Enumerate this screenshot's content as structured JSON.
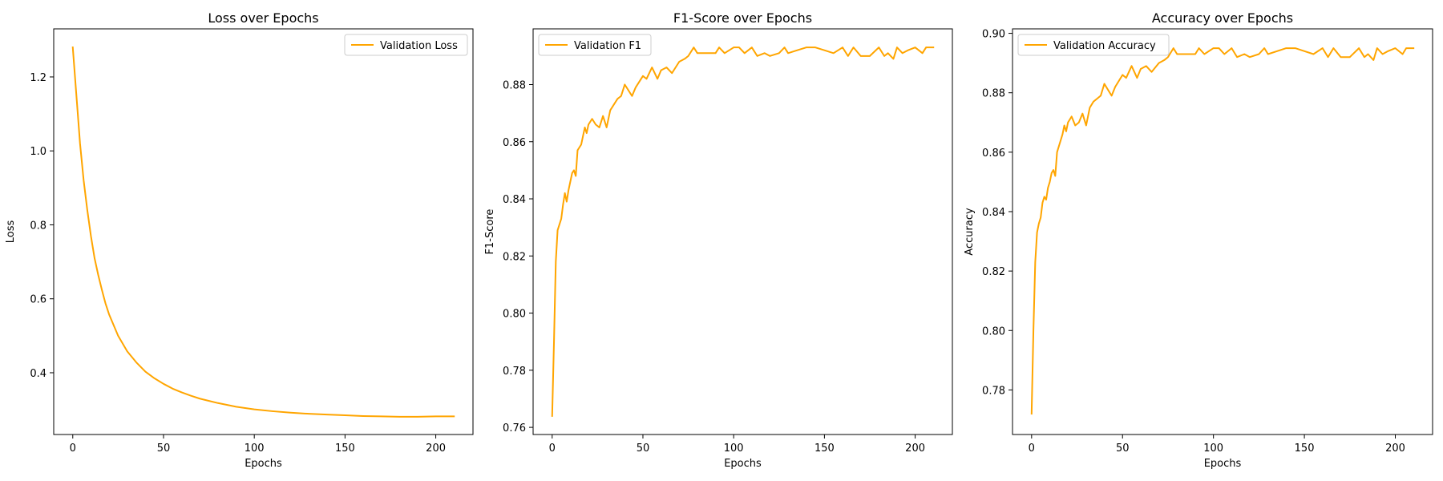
{
  "figure": {
    "background": "#ffffff",
    "line_color": "#ffa500"
  },
  "chart_data": [
    {
      "type": "line",
      "title": "Loss over Epochs",
      "xlabel": "Epochs",
      "ylabel": "Loss",
      "xlim": [
        -10.5,
        220.5
      ],
      "ylim": [
        0.233,
        1.33
      ],
      "grid": false,
      "legend_position": "top-right",
      "x_ticks": [
        0,
        50,
        100,
        150,
        200
      ],
      "x_tick_labels": [
        "0",
        "50",
        "100",
        "150",
        "200"
      ],
      "y_ticks": [
        0.4,
        0.6,
        0.8,
        1.0,
        1.2
      ],
      "y_tick_labels": [
        "0.4",
        "0.6",
        "0.8",
        "1.0",
        "1.2"
      ],
      "series": [
        {
          "name": "Validation Loss",
          "color": "#ffa500",
          "x": [
            0,
            2,
            4,
            6,
            8,
            10,
            12,
            14,
            16,
            18,
            20,
            25,
            30,
            35,
            40,
            45,
            50,
            55,
            60,
            65,
            70,
            80,
            90,
            100,
            110,
            120,
            130,
            140,
            150,
            160,
            170,
            180,
            190,
            200,
            210
          ],
          "y": [
            1.28,
            1.15,
            1.02,
            0.92,
            0.84,
            0.77,
            0.71,
            0.665,
            0.625,
            0.588,
            0.558,
            0.5,
            0.458,
            0.428,
            0.403,
            0.385,
            0.37,
            0.357,
            0.347,
            0.338,
            0.33,
            0.318,
            0.308,
            0.301,
            0.296,
            0.292,
            0.289,
            0.287,
            0.285,
            0.283,
            0.282,
            0.281,
            0.281,
            0.282,
            0.282
          ]
        }
      ]
    },
    {
      "type": "line",
      "title": "F1-Score over Epochs",
      "xlabel": "Epochs",
      "ylabel": "F1-Score",
      "xlim": [
        -10.5,
        220.5
      ],
      "ylim": [
        0.7575,
        0.8995
      ],
      "grid": false,
      "legend_position": "top-left",
      "x_ticks": [
        0,
        50,
        100,
        150,
        200
      ],
      "x_tick_labels": [
        "0",
        "50",
        "100",
        "150",
        "200"
      ],
      "y_ticks": [
        0.76,
        0.78,
        0.8,
        0.82,
        0.84,
        0.86,
        0.88
      ],
      "y_tick_labels": [
        "0.76",
        "0.78",
        "0.80",
        "0.82",
        "0.84",
        "0.86",
        "0.88"
      ],
      "series": [
        {
          "name": "Validation F1",
          "color": "#ffa500",
          "x": [
            0,
            1,
            2,
            3,
            4,
            5,
            6,
            7,
            8,
            9,
            10,
            11,
            12,
            13,
            14,
            15,
            16,
            17,
            18,
            19,
            20,
            22,
            24,
            26,
            28,
            30,
            32,
            34,
            36,
            38,
            40,
            42,
            44,
            46,
            48,
            50,
            52,
            55,
            58,
            60,
            63,
            66,
            70,
            73,
            75,
            78,
            80,
            85,
            90,
            92,
            95,
            100,
            103,
            106,
            110,
            113,
            117,
            120,
            125,
            128,
            130,
            135,
            140,
            145,
            150,
            155,
            160,
            163,
            166,
            170,
            175,
            180,
            183,
            185,
            188,
            190,
            193,
            196,
            200,
            204,
            206,
            210
          ],
          "y": [
            0.764,
            0.79,
            0.818,
            0.829,
            0.831,
            0.833,
            0.838,
            0.842,
            0.839,
            0.843,
            0.846,
            0.849,
            0.85,
            0.848,
            0.857,
            0.858,
            0.859,
            0.862,
            0.865,
            0.863,
            0.866,
            0.868,
            0.866,
            0.865,
            0.869,
            0.865,
            0.871,
            0.873,
            0.875,
            0.876,
            0.88,
            0.878,
            0.876,
            0.879,
            0.881,
            0.883,
            0.882,
            0.886,
            0.882,
            0.885,
            0.886,
            0.884,
            0.888,
            0.889,
            0.89,
            0.893,
            0.891,
            0.891,
            0.891,
            0.893,
            0.891,
            0.893,
            0.893,
            0.891,
            0.893,
            0.89,
            0.891,
            0.89,
            0.891,
            0.893,
            0.891,
            0.892,
            0.893,
            0.893,
            0.892,
            0.891,
            0.893,
            0.89,
            0.893,
            0.89,
            0.89,
            0.893,
            0.89,
            0.891,
            0.889,
            0.893,
            0.891,
            0.892,
            0.893,
            0.891,
            0.893,
            0.893
          ]
        }
      ]
    },
    {
      "type": "line",
      "title": "Accuracy over Epochs",
      "xlabel": "Epochs",
      "ylabel": "Accuracy",
      "xlim": [
        -10.5,
        220.5
      ],
      "ylim": [
        0.765,
        0.9015
      ],
      "grid": false,
      "legend_position": "top-left",
      "x_ticks": [
        0,
        50,
        100,
        150,
        200
      ],
      "x_tick_labels": [
        "0",
        "50",
        "100",
        "150",
        "200"
      ],
      "y_ticks": [
        0.78,
        0.8,
        0.82,
        0.84,
        0.86,
        0.88,
        0.9
      ],
      "y_tick_labels": [
        "0.78",
        "0.80",
        "0.82",
        "0.84",
        "0.86",
        "0.88",
        "0.90"
      ],
      "series": [
        {
          "name": "Validation Accuracy",
          "color": "#ffa500",
          "x": [
            0,
            1,
            2,
            3,
            4,
            5,
            6,
            7,
            8,
            9,
            10,
            11,
            12,
            13,
            14,
            15,
            16,
            17,
            18,
            19,
            20,
            22,
            24,
            26,
            28,
            30,
            32,
            34,
            36,
            38,
            40,
            42,
            44,
            46,
            48,
            50,
            52,
            55,
            58,
            60,
            63,
            66,
            70,
            73,
            75,
            78,
            80,
            85,
            90,
            92,
            95,
            100,
            103,
            106,
            110,
            113,
            117,
            120,
            125,
            128,
            130,
            135,
            140,
            145,
            150,
            155,
            160,
            163,
            166,
            170,
            175,
            180,
            183,
            185,
            188,
            190,
            193,
            196,
            200,
            204,
            206,
            210
          ],
          "y": [
            0.772,
            0.8,
            0.823,
            0.833,
            0.836,
            0.838,
            0.843,
            0.845,
            0.844,
            0.848,
            0.85,
            0.853,
            0.854,
            0.852,
            0.86,
            0.862,
            0.864,
            0.866,
            0.869,
            0.867,
            0.87,
            0.872,
            0.869,
            0.87,
            0.873,
            0.869,
            0.875,
            0.877,
            0.878,
            0.879,
            0.883,
            0.881,
            0.879,
            0.882,
            0.884,
            0.886,
            0.885,
            0.889,
            0.885,
            0.888,
            0.889,
            0.887,
            0.89,
            0.891,
            0.892,
            0.895,
            0.893,
            0.893,
            0.893,
            0.895,
            0.893,
            0.895,
            0.895,
            0.893,
            0.895,
            0.892,
            0.893,
            0.892,
            0.893,
            0.895,
            0.893,
            0.894,
            0.895,
            0.895,
            0.894,
            0.893,
            0.895,
            0.892,
            0.895,
            0.892,
            0.892,
            0.895,
            0.892,
            0.893,
            0.891,
            0.895,
            0.893,
            0.894,
            0.895,
            0.893,
            0.895,
            0.895
          ]
        }
      ]
    }
  ]
}
